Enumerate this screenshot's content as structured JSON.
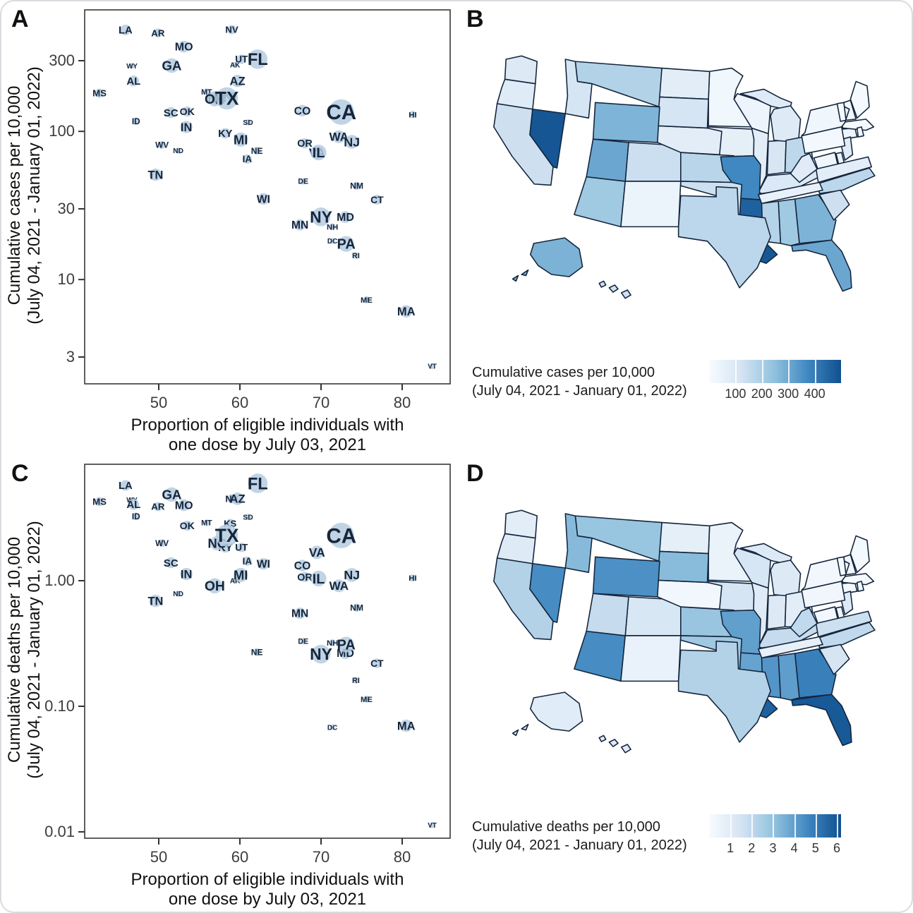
{
  "figure": {
    "panel_labels": {
      "a": "A",
      "b": "B",
      "c": "C",
      "d": "D"
    },
    "x_axis": {
      "title_line1": "Proportion of eligible individuals with",
      "title_line2": "one dose by July 03, 2021",
      "ticks": [
        50,
        60,
        70,
        80
      ]
    },
    "scatter_cases": {
      "y_title_line1": "Cumulative cases per 10,000",
      "y_title_line2": "(July 04, 2021 - January 01, 2022)",
      "y_ticks": [
        "300",
        "100",
        "30",
        "10",
        "3"
      ]
    },
    "scatter_deaths": {
      "y_title_line1": "Cumulative deaths per 10,000",
      "y_title_line2": "(July 04, 2021 - January 01, 2022)",
      "y_ticks": [
        "1.00",
        "0.10",
        "0.01"
      ]
    },
    "legend_cases": {
      "title_line1": "Cumulative cases per 10,000",
      "title_line2": "(July 04, 2021 - January 01, 2022)",
      "ticks": [
        100,
        200,
        300,
        400
      ],
      "domain_max": 500
    },
    "legend_deaths": {
      "title_line1": "Cumulative deaths per 10,000",
      "title_line2": "(July 04, 2021 - January 01, 2022)",
      "ticks": [
        1,
        2,
        3,
        4,
        5,
        6
      ],
      "domain_max": 6.2
    },
    "colors": {
      "bubble_fill": "#b5cde2",
      "label_text": "#16263b",
      "map_scale_low": "#f7fbff",
      "map_scale_mid": "#8fc0dd",
      "map_scale_high": "#11508f",
      "map_stroke": "#14253c",
      "axis_text": "#3d3d3d",
      "frame": "#2b2b2b"
    }
  },
  "chart_data": {
    "type": "scatter",
    "description": "Bubble scatter plots (A: cases, C: deaths, log y-scale, bubble size and label size proportional to state population) and US choropleth maps (B: cases, D: deaths) of COVID-19 outcomes July 04 2021 - January 01 2022 versus vaccination uptake.",
    "xlabel": "Proportion of eligible individuals with one dose by July 03, 2021",
    "x_range": [
      41,
      86
    ],
    "cases_y_range_log": [
      2,
      650
    ],
    "deaths_y_range_log": [
      0.009,
      8
    ],
    "states": [
      {
        "abbr": "AK",
        "vax_pct": 59.4,
        "cases_per_10k": 281,
        "deaths_per_10k": 1.0,
        "pop_millions": 0.73
      },
      {
        "abbr": "AL",
        "vax_pct": 46.9,
        "cases_per_10k": 219,
        "deaths_per_10k": 4.05,
        "pop_millions": 5.0
      },
      {
        "abbr": "AR",
        "vax_pct": 49.9,
        "cases_per_10k": 462,
        "deaths_per_10k": 3.89,
        "pop_millions": 3.0
      },
      {
        "abbr": "AZ",
        "vax_pct": 59.7,
        "cases_per_10k": 219,
        "deaths_per_10k": 4.49,
        "pop_millions": 7.2
      },
      {
        "abbr": "CA",
        "vax_pct": 72.5,
        "cases_per_10k": 135,
        "deaths_per_10k": 2.29,
        "pop_millions": 39.5
      },
      {
        "abbr": "CO",
        "vax_pct": 67.7,
        "cases_per_10k": 138,
        "deaths_per_10k": 1.32,
        "pop_millions": 5.8
      },
      {
        "abbr": "CT",
        "vax_pct": 76.9,
        "cases_per_10k": 34.6,
        "deaths_per_10k": 0.22,
        "pop_millions": 3.6
      },
      {
        "abbr": "DC",
        "vax_pct": 71.4,
        "cases_per_10k": 18.2,
        "deaths_per_10k": 0.068,
        "pop_millions": 0.7
      },
      {
        "abbr": "DE",
        "vax_pct": 67.8,
        "cases_per_10k": 46,
        "deaths_per_10k": 0.33,
        "pop_millions": 1.0
      },
      {
        "abbr": "FL",
        "vax_pct": 62.2,
        "cases_per_10k": 307,
        "deaths_per_10k": 5.96,
        "pop_millions": 21.5
      },
      {
        "abbr": "GA",
        "vax_pct": 51.6,
        "cases_per_10k": 278,
        "deaths_per_10k": 4.85,
        "pop_millions": 10.7
      },
      {
        "abbr": "HI",
        "vax_pct": 81.3,
        "cases_per_10k": 130,
        "deaths_per_10k": 1.05,
        "pop_millions": 1.5
      },
      {
        "abbr": "IA",
        "vax_pct": 60.9,
        "cases_per_10k": 65,
        "deaths_per_10k": 1.43,
        "pop_millions": 3.2
      },
      {
        "abbr": "ID",
        "vax_pct": 47.2,
        "cases_per_10k": 117,
        "deaths_per_10k": 3.25,
        "pop_millions": 1.8
      },
      {
        "abbr": "IL",
        "vax_pct": 69.7,
        "cases_per_10k": 72,
        "deaths_per_10k": 1.04,
        "pop_millions": 12.7
      },
      {
        "abbr": "IN",
        "vax_pct": 53.4,
        "cases_per_10k": 107,
        "deaths_per_10k": 1.13,
        "pop_millions": 6.8
      },
      {
        "abbr": "KS",
        "vax_pct": 58.8,
        "cases_per_10k": 175,
        "deaths_per_10k": 2.86,
        "pop_millions": 2.9
      },
      {
        "abbr": "KY",
        "vax_pct": 58.2,
        "cases_per_10k": 97,
        "deaths_per_10k": 1.84,
        "pop_millions": 4.5
      },
      {
        "abbr": "LA",
        "vax_pct": 45.9,
        "cases_per_10k": 484,
        "deaths_per_10k": 5.73,
        "pop_millions": 4.7
      },
      {
        "abbr": "MA",
        "vax_pct": 80.5,
        "cases_per_10k": 6.1,
        "deaths_per_10k": 0.07,
        "pop_millions": 7.0
      },
      {
        "abbr": "MD",
        "vax_pct": 73.0,
        "cases_per_10k": 26.4,
        "deaths_per_10k": 0.265,
        "pop_millions": 6.2
      },
      {
        "abbr": "ME",
        "vax_pct": 75.6,
        "cases_per_10k": 7.3,
        "deaths_per_10k": 0.114,
        "pop_millions": 1.4
      },
      {
        "abbr": "MI",
        "vax_pct": 60.1,
        "cases_per_10k": 88,
        "deaths_per_10k": 1.11,
        "pop_millions": 10.0
      },
      {
        "abbr": "MN",
        "vax_pct": 67.4,
        "cases_per_10k": 23.4,
        "deaths_per_10k": 0.55,
        "pop_millions": 5.7
      },
      {
        "abbr": "MO",
        "vax_pct": 53.1,
        "cases_per_10k": 373,
        "deaths_per_10k": 3.99,
        "pop_millions": 6.2
      },
      {
        "abbr": "MS",
        "vax_pct": 42.7,
        "cases_per_10k": 181,
        "deaths_per_10k": 4.26,
        "pop_millions": 3.0
      },
      {
        "abbr": "MT",
        "vax_pct": 55.9,
        "cases_per_10k": 185,
        "deaths_per_10k": 2.89,
        "pop_millions": 1.1
      },
      {
        "abbr": "NC",
        "vax_pct": 57.2,
        "cases_per_10k": 168,
        "deaths_per_10k": 1.99,
        "pop_millions": 10.4
      },
      {
        "abbr": "ND",
        "vax_pct": 52.4,
        "cases_per_10k": 74,
        "deaths_per_10k": 0.79,
        "pop_millions": 0.8
      },
      {
        "abbr": "NE",
        "vax_pct": 62.1,
        "cases_per_10k": 74,
        "deaths_per_10k": 0.27,
        "pop_millions": 2.0
      },
      {
        "abbr": "NH",
        "vax_pct": 71.4,
        "cases_per_10k": 22.7,
        "deaths_per_10k": 0.32,
        "pop_millions": 1.4
      },
      {
        "abbr": "NJ",
        "vax_pct": 73.8,
        "cases_per_10k": 85,
        "deaths_per_10k": 1.11,
        "pop_millions": 9.3
      },
      {
        "abbr": "NM",
        "vax_pct": 74.4,
        "cases_per_10k": 43,
        "deaths_per_10k": 0.61,
        "pop_millions": 2.1
      },
      {
        "abbr": "NV",
        "vax_pct": 59.0,
        "cases_per_10k": 486,
        "deaths_per_10k": 4.49,
        "pop_millions": 3.1
      },
      {
        "abbr": "NY",
        "vax_pct": 70.0,
        "cases_per_10k": 26.5,
        "deaths_per_10k": 0.26,
        "pop_millions": 19.5
      },
      {
        "abbr": "OH",
        "vax_pct": 56.9,
        "cases_per_10k": 166,
        "deaths_per_10k": 0.91,
        "pop_millions": 11.8
      },
      {
        "abbr": "OK",
        "vax_pct": 53.5,
        "cases_per_10k": 136,
        "deaths_per_10k": 2.74,
        "pop_millions": 4.0
      },
      {
        "abbr": "OR",
        "vax_pct": 68.0,
        "cases_per_10k": 83,
        "deaths_per_10k": 1.07,
        "pop_millions": 4.2
      },
      {
        "abbr": "PA",
        "vax_pct": 73.1,
        "cases_per_10k": 17.4,
        "deaths_per_10k": 0.31,
        "pop_millions": 13.0
      },
      {
        "abbr": "RI",
        "vax_pct": 74.3,
        "cases_per_10k": 14.5,
        "deaths_per_10k": 0.161,
        "pop_millions": 1.1
      },
      {
        "abbr": "SC",
        "vax_pct": 51.5,
        "cases_per_10k": 134,
        "deaths_per_10k": 1.39,
        "pop_millions": 5.1
      },
      {
        "abbr": "SD",
        "vax_pct": 61.0,
        "cases_per_10k": 115,
        "deaths_per_10k": 3.21,
        "pop_millions": 0.9
      },
      {
        "abbr": "TN",
        "vax_pct": 49.6,
        "cases_per_10k": 51,
        "deaths_per_10k": 0.69,
        "pop_millions": 6.9
      },
      {
        "abbr": "TX",
        "vax_pct": 58.4,
        "cases_per_10k": 167,
        "deaths_per_10k": 2.29,
        "pop_millions": 29.0
      },
      {
        "abbr": "UT",
        "vax_pct": 60.2,
        "cases_per_10k": 307,
        "deaths_per_10k": 1.84,
        "pop_millions": 3.3
      },
      {
        "abbr": "VA",
        "vax_pct": 69.5,
        "cases_per_10k": 72,
        "deaths_per_10k": 1.68,
        "pop_millions": 8.6
      },
      {
        "abbr": "VT",
        "vax_pct": 83.7,
        "cases_per_10k": 2.6,
        "deaths_per_10k": 0.0113,
        "pop_millions": 0.64
      },
      {
        "abbr": "WA",
        "vax_pct": 72.2,
        "cases_per_10k": 92,
        "deaths_per_10k": 0.91,
        "pop_millions": 7.7
      },
      {
        "abbr": "WI",
        "vax_pct": 62.9,
        "cases_per_10k": 35,
        "deaths_per_10k": 1.36,
        "pop_millions": 5.9
      },
      {
        "abbr": "WV",
        "vax_pct": 50.4,
        "cases_per_10k": 81,
        "deaths_per_10k": 1.99,
        "pop_millions": 1.8
      },
      {
        "abbr": "WY",
        "vax_pct": 46.7,
        "cases_per_10k": 276,
        "deaths_per_10k": 4.4,
        "pop_millions": 0.58
      }
    ]
  }
}
